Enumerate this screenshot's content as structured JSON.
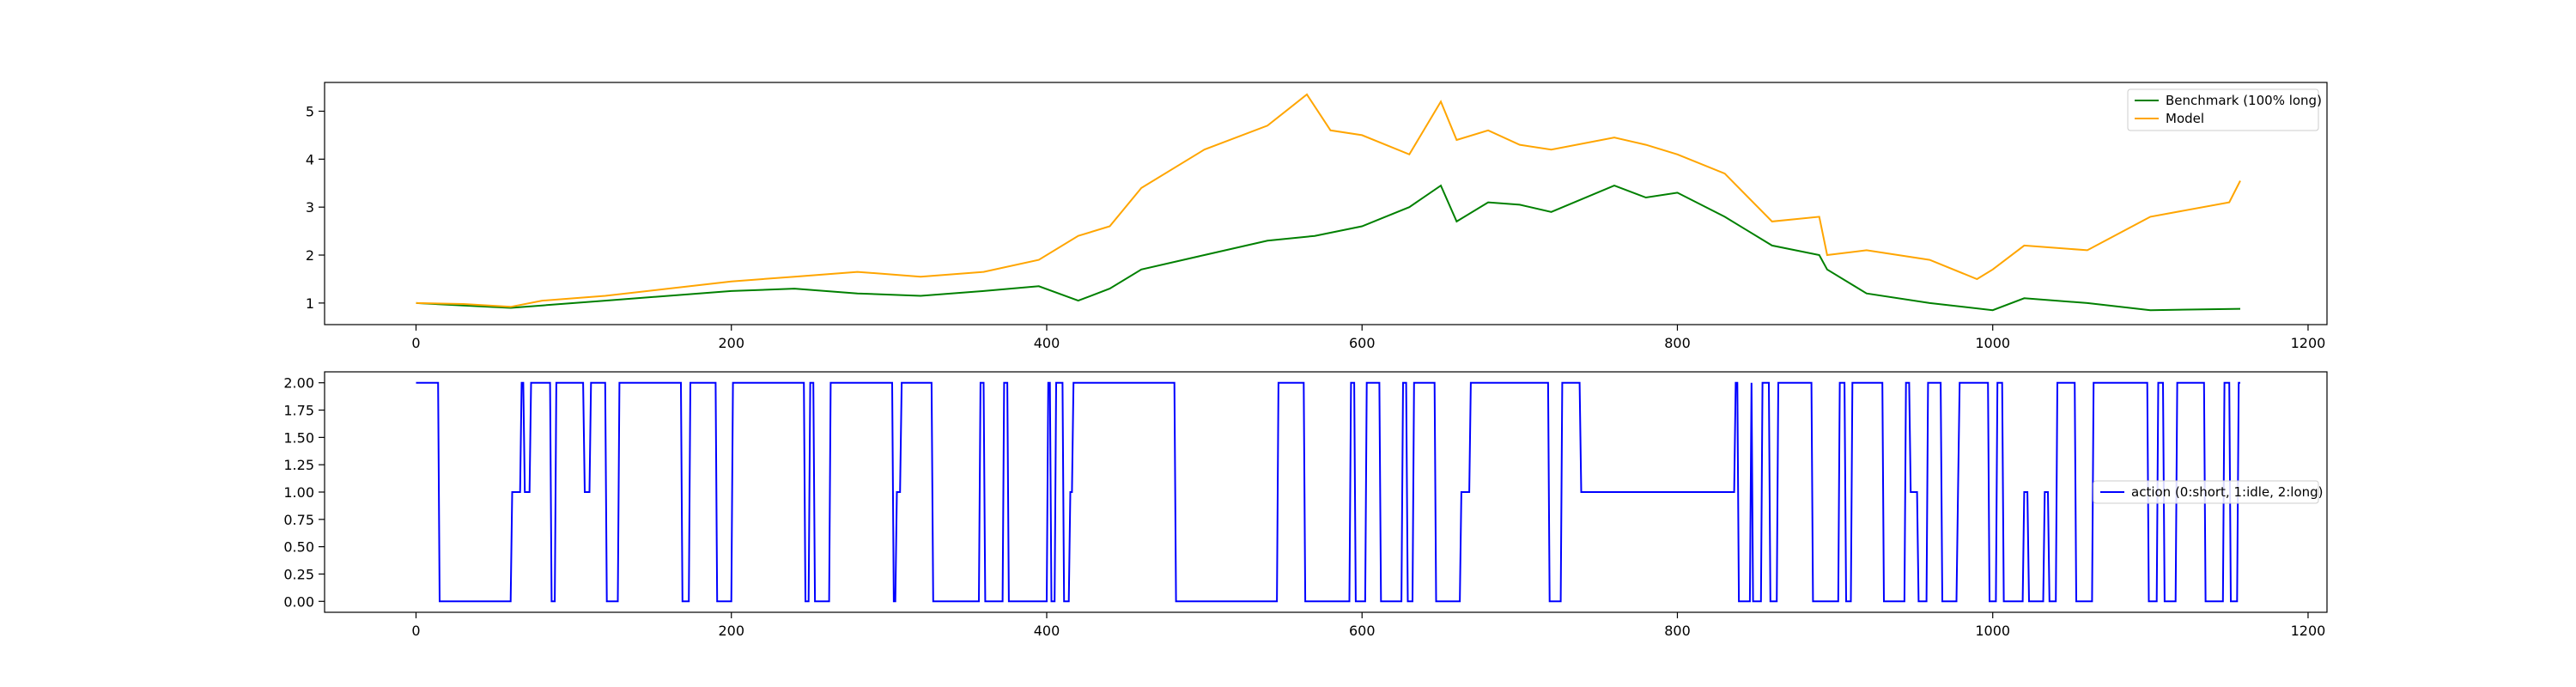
{
  "chart_data": [
    {
      "type": "line",
      "title": "",
      "xlabel": "",
      "ylabel": "",
      "xlim": [
        -58,
        1212
      ],
      "ylim": [
        0.55,
        5.6
      ],
      "x_ticks": [
        0,
        200,
        400,
        600,
        800,
        1000,
        1200
      ],
      "y_ticks": [
        1,
        2,
        3,
        4,
        5
      ],
      "legend": {
        "placement": "upper right"
      },
      "grid": false,
      "series": [
        {
          "name": "Benchmark (100% long)",
          "color": "#008000",
          "x": [
            0,
            30,
            60,
            80,
            120,
            160,
            200,
            240,
            280,
            320,
            360,
            395,
            420,
            440,
            460,
            500,
            540,
            570,
            600,
            630,
            650,
            660,
            680,
            700,
            720,
            760,
            780,
            800,
            830,
            860,
            890,
            895,
            920,
            960,
            1000,
            1020,
            1060,
            1100,
            1157
          ],
          "values": [
            1.0,
            0.95,
            0.9,
            0.95,
            1.05,
            1.15,
            1.25,
            1.3,
            1.2,
            1.15,
            1.25,
            1.35,
            1.05,
            1.3,
            1.7,
            2.0,
            2.3,
            2.4,
            2.6,
            3.0,
            3.45,
            2.7,
            3.1,
            3.05,
            2.9,
            3.45,
            3.2,
            3.3,
            2.8,
            2.2,
            2.0,
            1.7,
            1.2,
            1.0,
            0.85,
            1.1,
            1.0,
            0.85,
            0.88
          ]
        },
        {
          "name": "Model",
          "color": "#FFA500",
          "x": [
            0,
            30,
            60,
            80,
            120,
            160,
            200,
            240,
            280,
            320,
            360,
            395,
            420,
            440,
            460,
            500,
            540,
            565,
            580,
            600,
            630,
            650,
            660,
            680,
            700,
            720,
            760,
            780,
            800,
            830,
            860,
            890,
            895,
            920,
            960,
            990,
            1000,
            1020,
            1060,
            1100,
            1150,
            1157
          ],
          "values": [
            1.0,
            0.98,
            0.92,
            1.05,
            1.15,
            1.3,
            1.45,
            1.55,
            1.65,
            1.55,
            1.65,
            1.9,
            2.4,
            2.6,
            3.4,
            4.2,
            4.7,
            5.35,
            4.6,
            4.5,
            4.1,
            5.2,
            4.4,
            4.6,
            4.3,
            4.2,
            4.45,
            4.3,
            4.1,
            3.7,
            2.7,
            2.8,
            2.0,
            2.1,
            1.9,
            1.5,
            1.7,
            2.2,
            2.1,
            2.8,
            3.1,
            3.55
          ]
        }
      ]
    },
    {
      "type": "line",
      "title": "",
      "xlabel": "",
      "ylabel": "",
      "xlim": [
        -58,
        1212
      ],
      "ylim": [
        -0.1,
        2.1
      ],
      "x_ticks": [
        0,
        200,
        400,
        600,
        800,
        1000,
        1200
      ],
      "y_ticks": [
        0.0,
        0.25,
        0.5,
        0.75,
        1.0,
        1.25,
        1.5,
        1.75,
        2.0
      ],
      "y_tick_labels": [
        "0.00",
        "0.25",
        "0.50",
        "0.75",
        "1.00",
        "1.25",
        "1.50",
        "1.75",
        "2.00"
      ],
      "legend": {
        "placement": "center right"
      },
      "grid": false,
      "series": [
        {
          "name": "action (0:short, 1:idle, 2:long)",
          "color": "#0000FF",
          "x": [
            0,
            14,
            15,
            60,
            61,
            66,
            67,
            68,
            69,
            72,
            73,
            85,
            86,
            88,
            89,
            106,
            107,
            110,
            111,
            120,
            121,
            128,
            129,
            168,
            169,
            173,
            174,
            190,
            191,
            200,
            201,
            246,
            247,
            249,
            250,
            252,
            253,
            262,
            263,
            302,
            303,
            304,
            305,
            307,
            308,
            327,
            328,
            357,
            358,
            360,
            361,
            372,
            373,
            375,
            376,
            400,
            401,
            402,
            403,
            405,
            406,
            410,
            411,
            414,
            415,
            416,
            417,
            481,
            482,
            546,
            547,
            563,
            564,
            592,
            593,
            595,
            596,
            602,
            603,
            611,
            612,
            625,
            626,
            628,
            629,
            632,
            633,
            646,
            647,
            662,
            663,
            668,
            669,
            718,
            719,
            726,
            727,
            738,
            739,
            836,
            837,
            838,
            839,
            846,
            847,
            847,
            848,
            853,
            854,
            858,
            859,
            863,
            864,
            885,
            886,
            902,
            903,
            906,
            907,
            910,
            911,
            930,
            931,
            944,
            945,
            947,
            948,
            952,
            953,
            958,
            959,
            967,
            968,
            977,
            978,
            978,
            979,
            997,
            998,
            1002,
            1003,
            1006,
            1007,
            1019,
            1020,
            1022,
            1023,
            1032,
            1033,
            1035,
            1036,
            1040,
            1041,
            1052,
            1053,
            1063,
            1064,
            1098,
            1099,
            1104,
            1105,
            1108,
            1109,
            1116,
            1117,
            1134,
            1135,
            1146,
            1147,
            1150,
            1151,
            1155,
            1156,
            1157
          ],
          "values": [
            2,
            2,
            0,
            0,
            1,
            1,
            2,
            2,
            1,
            1,
            2,
            2,
            0,
            0,
            2,
            2,
            1,
            1,
            2,
            2,
            0,
            0,
            2,
            2,
            0,
            0,
            2,
            2,
            0,
            0,
            2,
            2,
            0,
            0,
            2,
            2,
            0,
            0,
            2,
            2,
            0,
            0,
            1,
            1,
            2,
            2,
            0,
            0,
            2,
            2,
            0,
            0,
            2,
            2,
            0,
            0,
            2,
            2,
            0,
            0,
            2,
            2,
            0,
            0,
            1,
            1,
            2,
            2,
            0,
            0,
            2,
            2,
            0,
            0,
            2,
            2,
            0,
            0,
            2,
            2,
            0,
            0,
            2,
            2,
            0,
            0,
            2,
            2,
            0,
            0,
            1,
            1,
            2,
            2,
            0,
            0,
            2,
            2,
            1,
            1,
            2,
            2,
            0,
            0,
            2,
            2,
            0,
            0,
            2,
            2,
            0,
            0,
            2,
            2,
            0,
            0,
            2,
            2,
            0,
            0,
            2,
            2,
            0,
            0,
            2,
            2,
            1,
            1,
            0,
            0,
            2,
            2,
            0,
            0,
            1,
            1,
            2,
            2,
            0,
            0,
            2,
            2,
            0,
            0,
            1,
            1,
            0,
            0,
            1,
            1,
            0,
            0,
            2,
            2,
            0,
            0,
            2,
            2,
            0,
            0,
            2,
            2,
            0,
            0,
            2,
            2,
            0,
            0,
            2,
            2,
            0,
            0,
            2,
            2
          ]
        }
      ]
    }
  ]
}
